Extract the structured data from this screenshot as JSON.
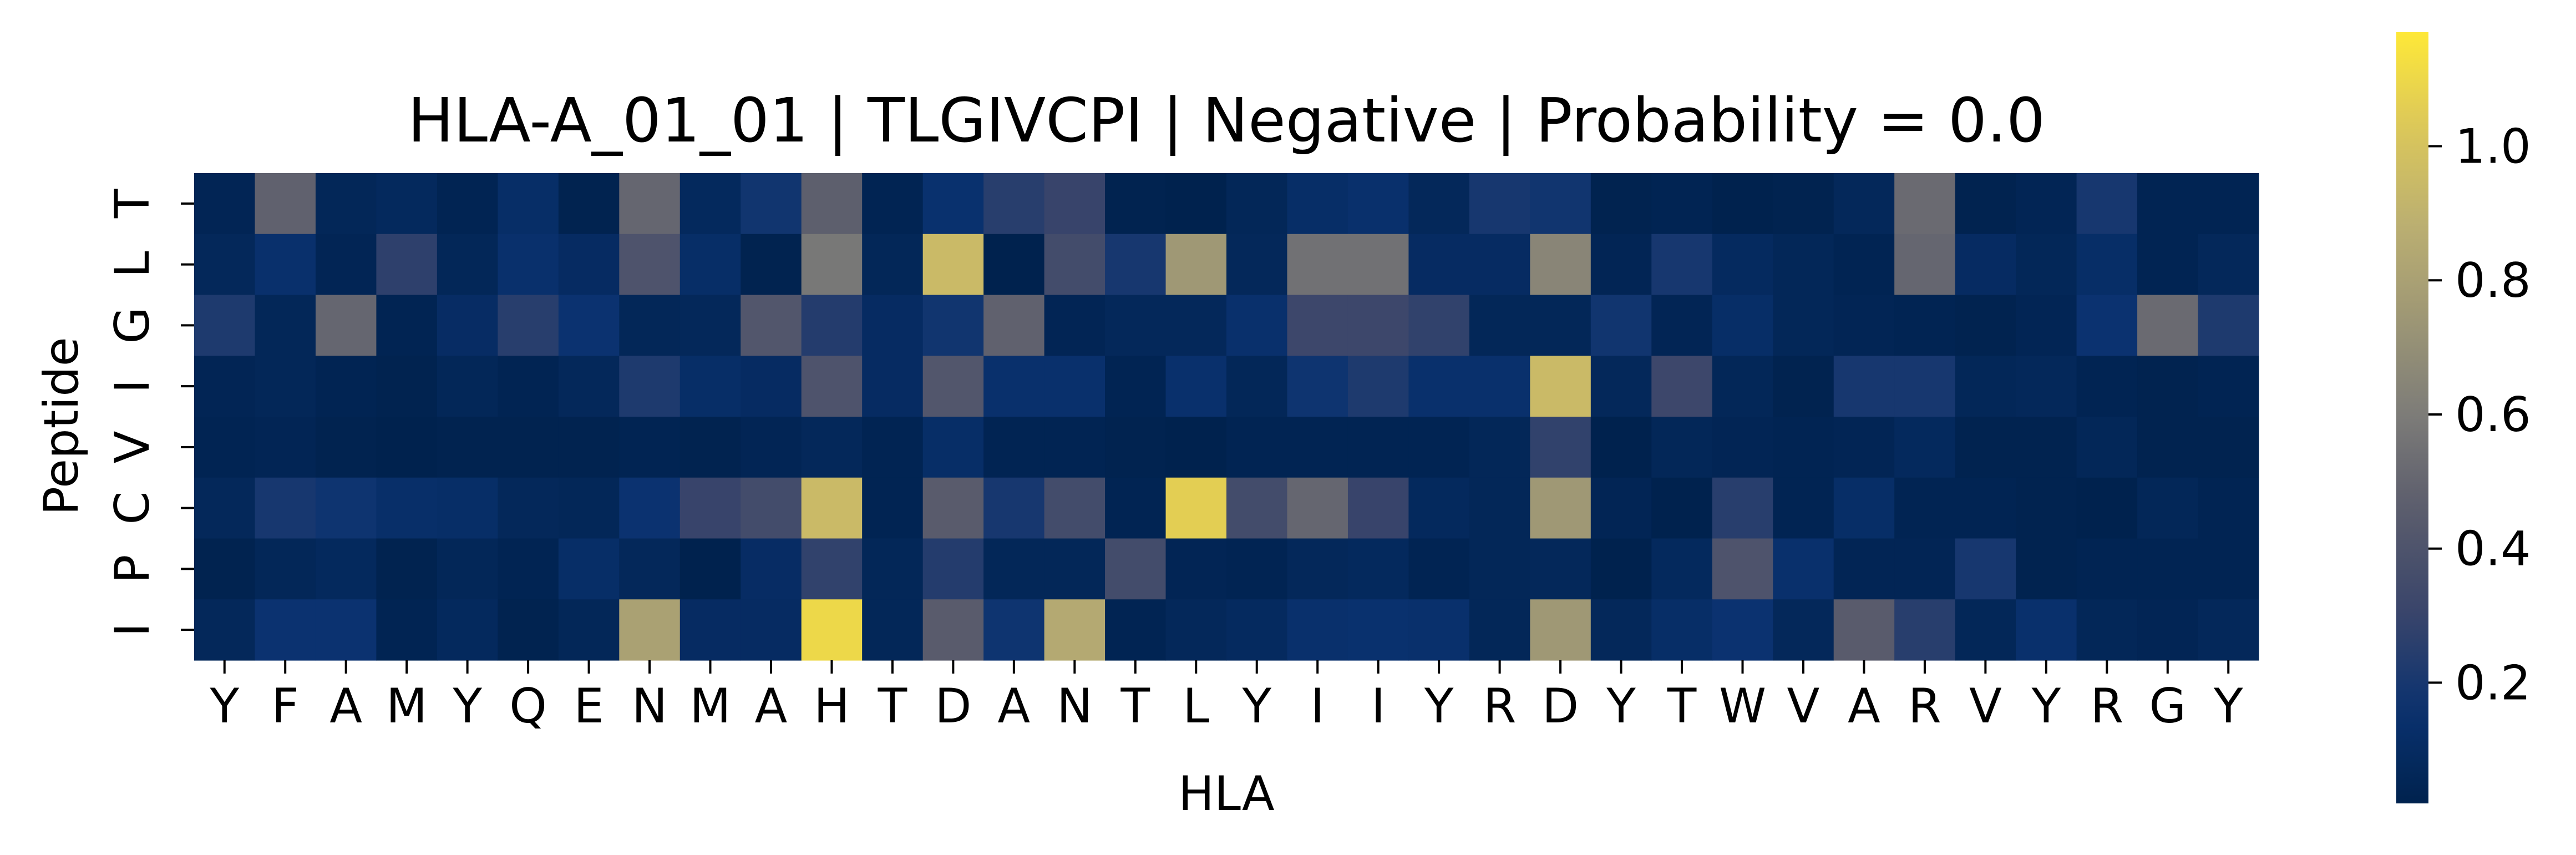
{
  "chart_data": {
    "type": "heatmap",
    "title": "HLA-A_01_01 | TLGIVCPI | Negative | Probability = 0.0",
    "xlabel": "HLA",
    "ylabel": "Peptide",
    "x_categories": [
      "Y",
      "F",
      "A",
      "M",
      "Y",
      "Q",
      "E",
      "N",
      "M",
      "A",
      "H",
      "T",
      "D",
      "A",
      "N",
      "T",
      "L",
      "Y",
      "I",
      "I",
      "Y",
      "R",
      "D",
      "Y",
      "T",
      "W",
      "V",
      "A",
      "R",
      "V",
      "Y",
      "R",
      "G",
      "Y"
    ],
    "y_categories": [
      "T",
      "L",
      "G",
      "I",
      "V",
      "C",
      "P",
      "I"
    ],
    "values": [
      [
        0.05,
        0.48,
        0.06,
        0.08,
        0.04,
        0.12,
        0.03,
        0.5,
        0.08,
        0.18,
        0.47,
        0.04,
        0.15,
        0.25,
        0.3,
        0.03,
        0.02,
        0.06,
        0.12,
        0.14,
        0.07,
        0.2,
        0.18,
        0.03,
        0.04,
        0.02,
        0.03,
        0.07,
        0.52,
        0.03,
        0.05,
        0.2,
        0.04,
        0.04
      ],
      [
        0.07,
        0.14,
        0.05,
        0.27,
        0.06,
        0.14,
        0.1,
        0.4,
        0.12,
        0.03,
        0.58,
        0.06,
        0.95,
        0.02,
        0.35,
        0.2,
        0.75,
        0.07,
        0.55,
        0.55,
        0.1,
        0.1,
        0.65,
        0.05,
        0.2,
        0.09,
        0.06,
        0.04,
        0.5,
        0.1,
        0.06,
        0.12,
        0.04,
        0.07
      ],
      [
        0.22,
        0.06,
        0.5,
        0.04,
        0.11,
        0.25,
        0.16,
        0.06,
        0.07,
        0.42,
        0.24,
        0.1,
        0.18,
        0.48,
        0.05,
        0.07,
        0.07,
        0.14,
        0.32,
        0.32,
        0.28,
        0.06,
        0.06,
        0.18,
        0.05,
        0.12,
        0.06,
        0.05,
        0.04,
        0.03,
        0.05,
        0.16,
        0.52,
        0.22
      ],
      [
        0.05,
        0.06,
        0.04,
        0.03,
        0.06,
        0.04,
        0.07,
        0.22,
        0.12,
        0.1,
        0.4,
        0.1,
        0.42,
        0.14,
        0.14,
        0.04,
        0.14,
        0.06,
        0.17,
        0.22,
        0.14,
        0.14,
        0.95,
        0.07,
        0.32,
        0.06,
        0.03,
        0.2,
        0.2,
        0.06,
        0.07,
        0.04,
        0.03,
        0.04
      ],
      [
        0.04,
        0.05,
        0.03,
        0.02,
        0.03,
        0.03,
        0.03,
        0.04,
        0.03,
        0.05,
        0.07,
        0.04,
        0.12,
        0.04,
        0.04,
        0.03,
        0.02,
        0.04,
        0.04,
        0.04,
        0.04,
        0.06,
        0.28,
        0.02,
        0.06,
        0.05,
        0.04,
        0.05,
        0.08,
        0.03,
        0.03,
        0.06,
        0.03,
        0.03
      ],
      [
        0.07,
        0.2,
        0.17,
        0.13,
        0.12,
        0.07,
        0.06,
        0.16,
        0.3,
        0.35,
        0.95,
        0.04,
        0.45,
        0.2,
        0.35,
        0.04,
        1.06,
        0.35,
        0.5,
        0.3,
        0.08,
        0.06,
        0.75,
        0.05,
        0.01,
        0.25,
        0.04,
        0.12,
        0.04,
        0.04,
        0.03,
        0.02,
        0.06,
        0.04
      ],
      [
        0.03,
        0.06,
        0.08,
        0.03,
        0.06,
        0.04,
        0.12,
        0.07,
        0.01,
        0.11,
        0.28,
        0.06,
        0.24,
        0.06,
        0.06,
        0.35,
        0.05,
        0.04,
        0.07,
        0.08,
        0.04,
        0.06,
        0.07,
        0.01,
        0.08,
        0.4,
        0.14,
        0.05,
        0.05,
        0.2,
        0.03,
        0.04,
        0.04,
        0.04
      ],
      [
        0.07,
        0.16,
        0.16,
        0.04,
        0.08,
        0.03,
        0.06,
        0.8,
        0.1,
        0.1,
        1.1,
        0.06,
        0.45,
        0.17,
        0.85,
        0.04,
        0.07,
        0.09,
        0.14,
        0.15,
        0.14,
        0.06,
        0.75,
        0.07,
        0.12,
        0.16,
        0.07,
        0.45,
        0.25,
        0.06,
        0.14,
        0.06,
        0.05,
        0.07
      ]
    ],
    "colorbar": {
      "colormap": "cividis",
      "vmin": 0.02,
      "vmax": 1.17,
      "ticks": [
        0.2,
        0.4,
        0.6,
        0.8,
        1.0
      ],
      "tick_labels": [
        "0.2",
        "0.4",
        "0.6",
        "0.8",
        "1.0"
      ]
    },
    "grid": false
  }
}
